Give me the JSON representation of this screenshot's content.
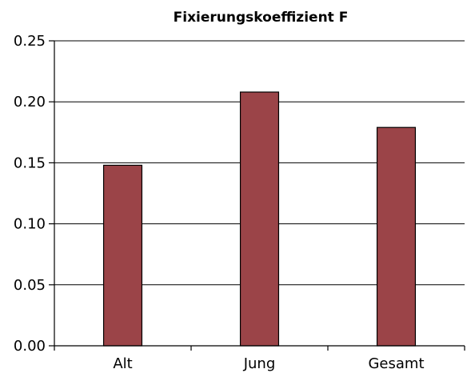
{
  "chart_data": {
    "type": "bar",
    "title": "Fixierungskoeffizient F",
    "categories": [
      "Alt",
      "Jung",
      "Gesamt"
    ],
    "values": [
      0.148,
      0.208,
      0.179
    ],
    "ylim": [
      0,
      0.25
    ],
    "yticks": [
      "0.00",
      "0.05",
      "0.10",
      "0.15",
      "0.20",
      "0.25"
    ],
    "grid": true,
    "legend": "none",
    "bar_color": "#9b4448"
  }
}
